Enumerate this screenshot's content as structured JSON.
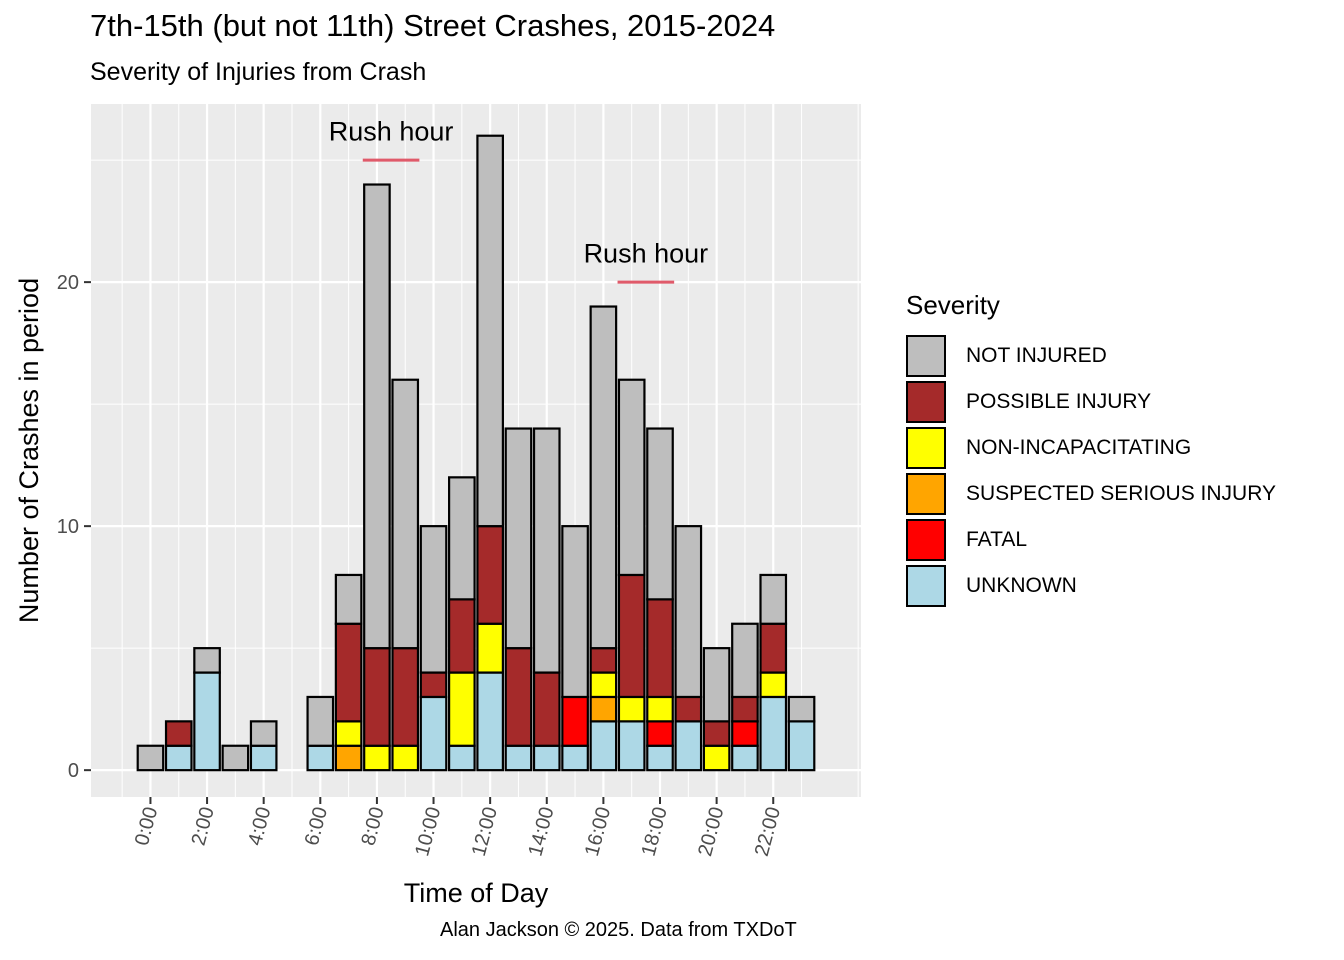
{
  "title": "7th-15th (but not 11th) Street Crashes, 2015-2024",
  "subtitle": "Severity of Injuries from Crash",
  "caption": "Alan Jackson © 2025. Data from TXDoT",
  "chart_data": {
    "type": "bar",
    "stacked": true,
    "xlabel": "Time of Day",
    "ylabel": "Number of Crashes in period",
    "x_tick_labels": [
      "0:00",
      "2:00",
      "4:00",
      "6:00",
      "8:00",
      "10:00",
      "12:00",
      "14:00",
      "16:00",
      "18:00",
      "20:00",
      "22:00"
    ],
    "y_ticks": [
      0,
      10,
      20
    ],
    "ylim": [
      -1.1,
      27.3
    ],
    "xlim": [
      -2.1,
      25.1
    ],
    "grid": true,
    "legend_title": "Severity",
    "legend_position": "right",
    "categories": [
      0,
      1,
      2,
      3,
      4,
      5,
      6,
      7,
      8,
      9,
      10,
      11,
      12,
      13,
      14,
      15,
      16,
      17,
      18,
      19,
      20,
      21,
      22,
      23
    ],
    "series": [
      {
        "name": "UNKNOWN",
        "color": "#ADD8E6",
        "values": [
          0,
          1,
          4,
          0,
          1,
          0,
          1,
          0,
          0,
          0,
          3,
          1,
          4,
          1,
          1,
          1,
          2,
          2,
          1,
          2,
          0,
          1,
          3,
          2
        ]
      },
      {
        "name": "FATAL",
        "color": "#FF0000",
        "values": [
          0,
          0,
          0,
          0,
          0,
          0,
          0,
          0,
          0,
          0,
          0,
          0,
          0,
          0,
          0,
          2,
          0,
          0,
          1,
          0,
          0,
          1,
          0,
          0
        ]
      },
      {
        "name": "SUSPECTED SERIOUS INJURY",
        "color": "#FFA500",
        "values": [
          0,
          0,
          0,
          0,
          0,
          0,
          0,
          1,
          0,
          0,
          0,
          0,
          0,
          0,
          0,
          0,
          1,
          0,
          0,
          0,
          0,
          0,
          0,
          0
        ]
      },
      {
        "name": "NON-INCAPACITATING",
        "color": "#FFFF00",
        "values": [
          0,
          0,
          0,
          0,
          0,
          0,
          0,
          1,
          1,
          1,
          0,
          3,
          2,
          0,
          0,
          0,
          1,
          1,
          1,
          0,
          1,
          0,
          1,
          0
        ]
      },
      {
        "name": "POSSIBLE INJURY",
        "color": "#A52A2A",
        "values": [
          0,
          1,
          0,
          0,
          0,
          0,
          0,
          4,
          4,
          4,
          1,
          3,
          4,
          4,
          3,
          0,
          1,
          5,
          4,
          1,
          1,
          1,
          2,
          0
        ]
      },
      {
        "name": "NOT INJURED",
        "color": "#BEBEBE",
        "values": [
          1,
          0,
          1,
          1,
          1,
          0,
          2,
          2,
          19,
          11,
          6,
          5,
          16,
          9,
          10,
          7,
          14,
          8,
          7,
          7,
          3,
          3,
          2,
          1
        ]
      }
    ],
    "annotations": [
      {
        "text": "Rush hour",
        "x_start": 7.5,
        "x_end": 9.5,
        "y_text": 25.8,
        "y_line": 25.0
      },
      {
        "text": "Rush hour",
        "x_start": 16.5,
        "x_end": 18.5,
        "y_text": 20.8,
        "y_line": 20.0
      }
    ],
    "annotation_line_color": "#E05A6A",
    "panel_color": "#EBEBEB"
  }
}
